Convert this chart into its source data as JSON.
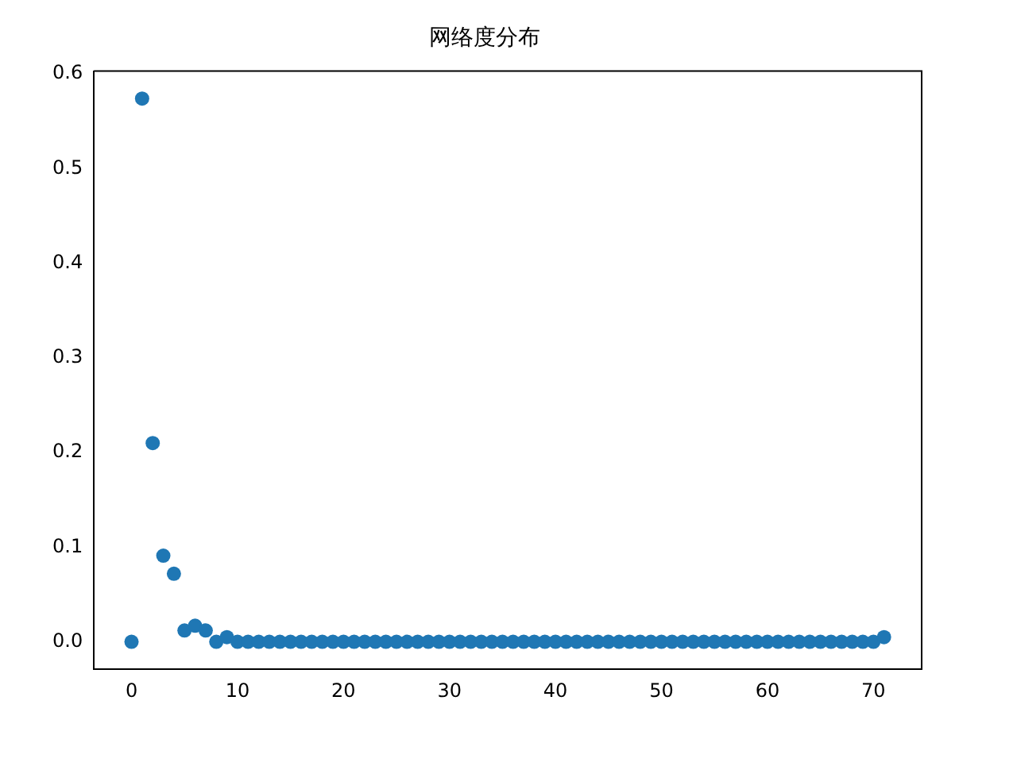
{
  "chart_data": {
    "type": "scatter",
    "title": "网络度分布",
    "x": [
      0,
      1,
      2,
      3,
      4,
      5,
      6,
      7,
      8,
      9,
      10,
      11,
      12,
      13,
      14,
      15,
      16,
      17,
      18,
      19,
      20,
      21,
      22,
      23,
      24,
      25,
      26,
      27,
      28,
      29,
      30,
      31,
      32,
      33,
      34,
      35,
      36,
      37,
      38,
      39,
      40,
      41,
      42,
      43,
      44,
      45,
      46,
      47,
      48,
      49,
      50,
      51,
      52,
      53,
      54,
      55,
      56,
      57,
      58,
      59,
      60,
      61,
      62,
      63,
      64,
      65,
      66,
      67,
      68,
      69,
      70,
      71
    ],
    "series": [
      {
        "color": "#1f77b4",
        "values": [
          0,
          0.574,
          0.21,
          0.091,
          0.072,
          0.012,
          0.017,
          0.012,
          0,
          0.005,
          0,
          0,
          0,
          0,
          0,
          0,
          0,
          0,
          0,
          0,
          0,
          0,
          0,
          0,
          0,
          0,
          0,
          0,
          0,
          0,
          0,
          0,
          0,
          0,
          0,
          0,
          0,
          0,
          0,
          0,
          0,
          0,
          0,
          0,
          0,
          0,
          0,
          0,
          0,
          0,
          0,
          0,
          0,
          0,
          0,
          0,
          0,
          0,
          0,
          0,
          0,
          0,
          0,
          0,
          0,
          0,
          0,
          0,
          0,
          0,
          0,
          0.005
        ]
      }
    ],
    "marker": "circle",
    "xlim": [
      -3.55,
      74.55
    ],
    "ylim": [
      -0.029,
      0.603
    ],
    "xticks": [
      0,
      10,
      20,
      30,
      40,
      50,
      60,
      70
    ],
    "yticks": [
      {
        "value": 0,
        "label": "0.0"
      },
      {
        "value": 0.1,
        "label": "0.1"
      },
      {
        "value": 0.2,
        "label": "0.2"
      },
      {
        "value": 0.3,
        "label": "0.3"
      },
      {
        "value": 0.4,
        "label": "0.4"
      },
      {
        "value": 0.5,
        "label": "0.5"
      },
      {
        "value": 0.6,
        "label": "0.6"
      }
    ],
    "grid": false,
    "legend": false
  }
}
